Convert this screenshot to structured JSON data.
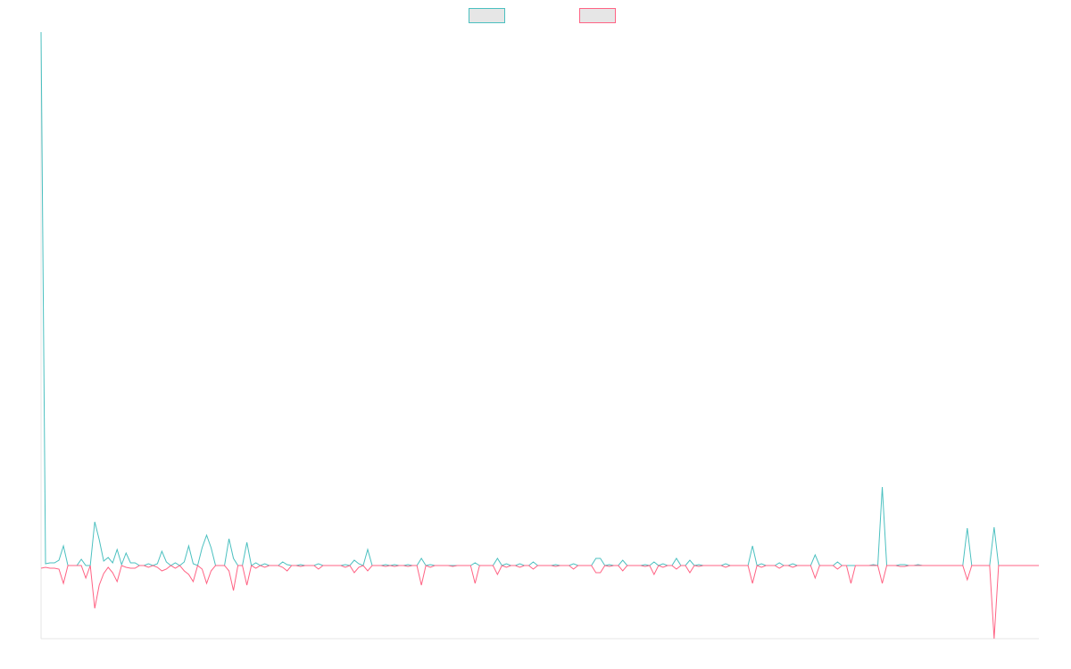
{
  "chart_data": {
    "type": "line",
    "legend": "top",
    "ylim": [
      -82,
      598
    ],
    "series": [
      {
        "color": "#4bc0c0",
        "values": [
          598,
          2,
          3,
          3,
          6,
          22,
          0,
          0,
          0,
          7,
          0,
          0,
          49,
          29,
          5,
          9,
          3,
          18,
          1,
          14,
          3,
          3,
          0,
          0,
          2,
          0,
          2,
          16,
          4,
          0,
          3,
          0,
          4,
          22,
          2,
          0,
          20,
          34,
          20,
          0,
          0,
          0,
          30,
          8,
          0,
          0,
          26,
          0,
          3,
          0,
          2,
          0,
          0,
          0,
          4,
          1,
          0,
          0,
          1,
          0,
          0,
          0,
          2,
          0,
          0,
          0,
          0,
          0,
          1,
          0,
          6,
          2,
          0,
          18,
          0,
          0,
          0,
          1,
          0,
          1,
          0,
          0,
          1,
          0,
          0,
          8,
          0,
          1,
          0,
          0,
          0,
          0,
          0,
          0,
          0,
          0,
          0,
          3,
          0,
          0,
          0,
          0,
          8,
          0,
          2,
          0,
          0,
          2,
          0,
          0,
          4,
          0,
          0,
          0,
          0,
          1,
          0,
          0,
          0,
          2,
          0,
          0,
          0,
          0,
          8,
          8,
          0,
          1,
          0,
          0,
          6,
          0,
          0,
          0,
          0,
          1,
          0,
          4,
          0,
          2,
          0,
          0,
          8,
          0,
          0,
          6,
          0,
          1,
          0,
          0,
          0,
          0,
          0,
          2,
          0,
          0,
          0,
          0,
          0,
          22,
          0,
          2,
          0,
          0,
          0,
          3,
          0,
          0,
          2,
          0,
          0,
          0,
          0,
          12,
          0,
          0,
          0,
          0,
          4,
          0,
          0,
          0,
          0,
          0,
          0,
          0,
          1,
          0,
          88,
          0,
          0,
          0,
          1,
          1,
          0,
          0,
          1,
          0,
          0,
          0,
          0,
          0,
          0,
          0,
          0,
          0,
          0,
          42,
          0,
          0,
          0,
          0,
          0,
          43,
          0,
          0,
          0,
          0,
          0,
          0,
          0,
          0,
          0,
          0
        ]
      },
      {
        "color": "#ff6384",
        "values": [
          -3,
          -2,
          -3,
          -3,
          -4,
          -20,
          0,
          0,
          0,
          0,
          -14,
          0,
          -48,
          -22,
          -9,
          -2,
          -8,
          -18,
          0,
          -2,
          -3,
          -3,
          0,
          0,
          -2,
          0,
          -2,
          -6,
          -4,
          0,
          -3,
          0,
          -6,
          -10,
          -18,
          0,
          -4,
          -20,
          -6,
          0,
          0,
          0,
          -6,
          -28,
          0,
          0,
          -22,
          0,
          -3,
          0,
          -2,
          0,
          0,
          0,
          -2,
          -6,
          0,
          0,
          -1,
          0,
          0,
          0,
          -4,
          0,
          0,
          0,
          0,
          0,
          -2,
          0,
          -8,
          -2,
          0,
          -6,
          0,
          0,
          0,
          -1,
          0,
          -1,
          0,
          0,
          -1,
          0,
          0,
          -22,
          0,
          -2,
          0,
          0,
          0,
          0,
          -1,
          0,
          0,
          0,
          0,
          -20,
          0,
          0,
          0,
          0,
          -10,
          0,
          -2,
          0,
          0,
          -2,
          0,
          0,
          -4,
          0,
          0,
          0,
          0,
          -1,
          0,
          0,
          0,
          -4,
          0,
          0,
          0,
          0,
          -8,
          -8,
          0,
          -1,
          0,
          0,
          -6,
          0,
          0,
          0,
          0,
          -1,
          0,
          -10,
          0,
          -2,
          0,
          0,
          -4,
          0,
          0,
          -8,
          0,
          -1,
          0,
          0,
          0,
          0,
          0,
          -2,
          0,
          0,
          0,
          0,
          0,
          -20,
          0,
          -2,
          0,
          0,
          0,
          -3,
          0,
          0,
          -2,
          0,
          0,
          0,
          0,
          -14,
          0,
          0,
          0,
          0,
          -4,
          0,
          0,
          -20,
          0,
          0,
          0,
          0,
          0,
          0,
          -20,
          0,
          0,
          0,
          -1,
          -1,
          0,
          0,
          0,
          0,
          0,
          0,
          0,
          0,
          0,
          0,
          0,
          0,
          0,
          -16,
          0,
          0,
          0,
          0,
          0,
          -82,
          0,
          0,
          0,
          0,
          0,
          0,
          0,
          0,
          0,
          0
        ]
      }
    ]
  }
}
